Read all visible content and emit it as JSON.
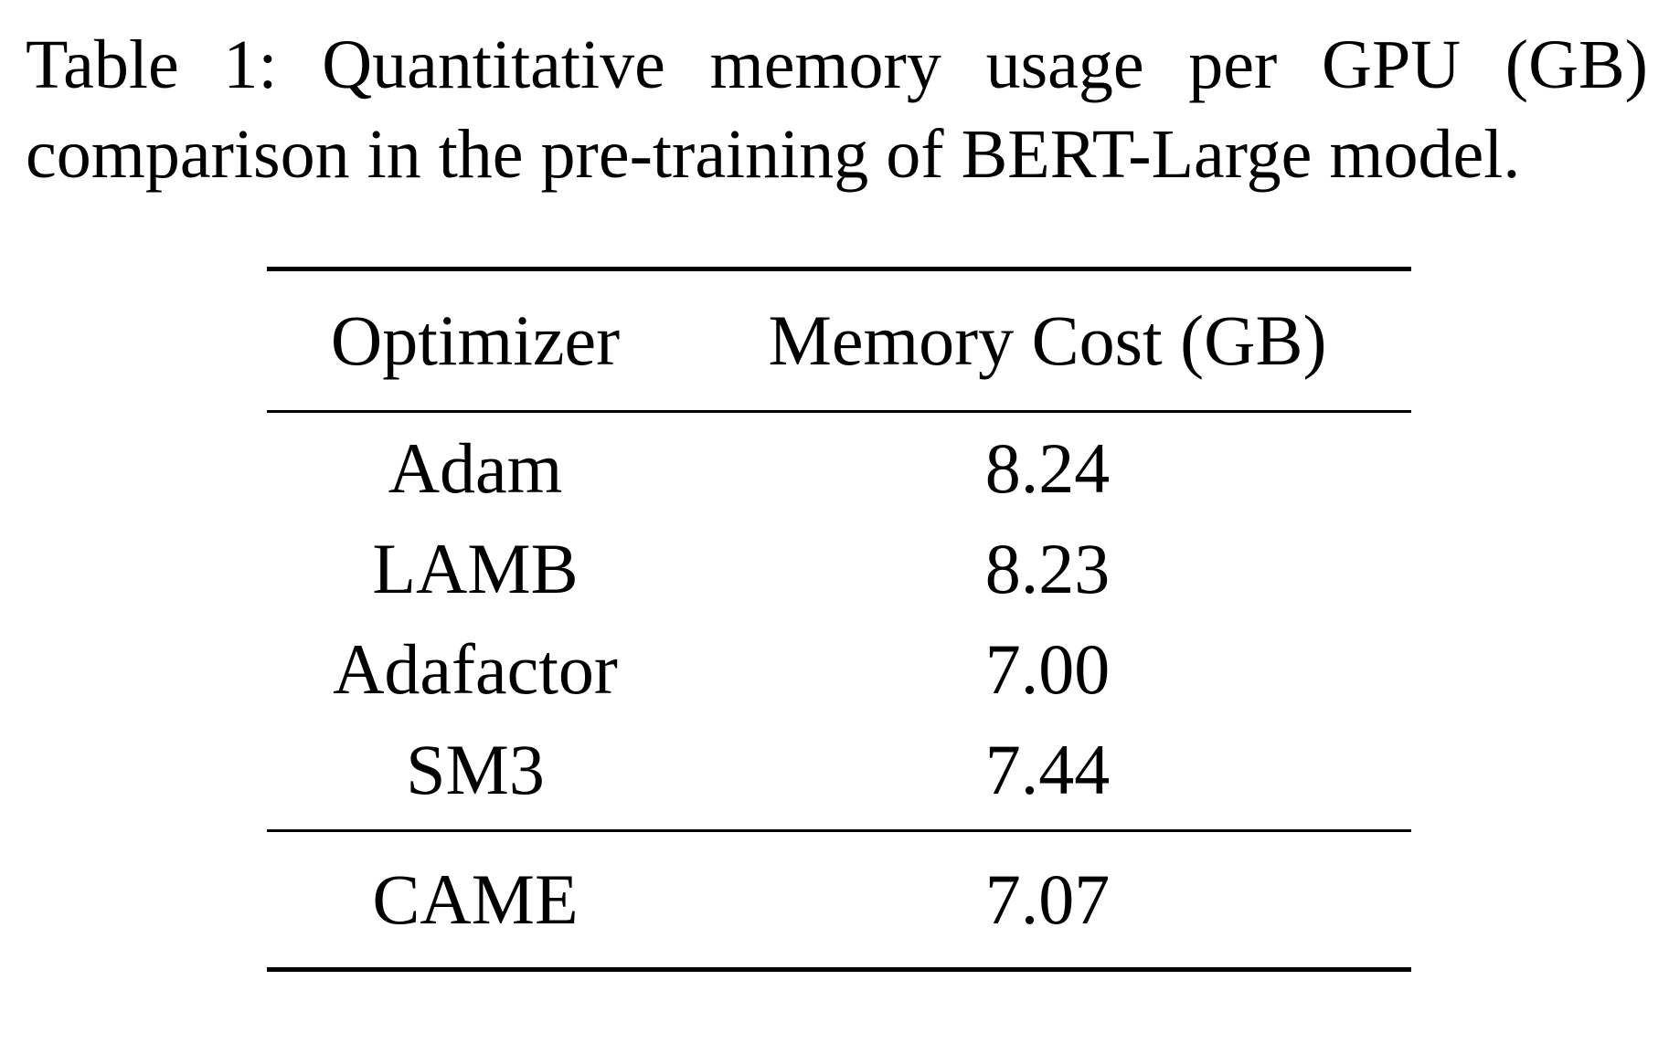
{
  "caption": {
    "line1": "Table 1: Quantitative memory usage per GPU (GB)",
    "line2": "comparison in the pre-training of BERT-Large model."
  },
  "table": {
    "headers": {
      "optimizer": "Optimizer",
      "memory": "Memory Cost (GB)"
    },
    "rows": [
      {
        "optimizer": "Adam",
        "memory": "8.24"
      },
      {
        "optimizer": "LAMB",
        "memory": "8.23"
      },
      {
        "optimizer": "Adafactor",
        "memory": "7.00"
      },
      {
        "optimizer": "SM3",
        "memory": "7.44"
      }
    ],
    "highlight_row": {
      "optimizer": "CAME",
      "memory": "7.07"
    }
  }
}
